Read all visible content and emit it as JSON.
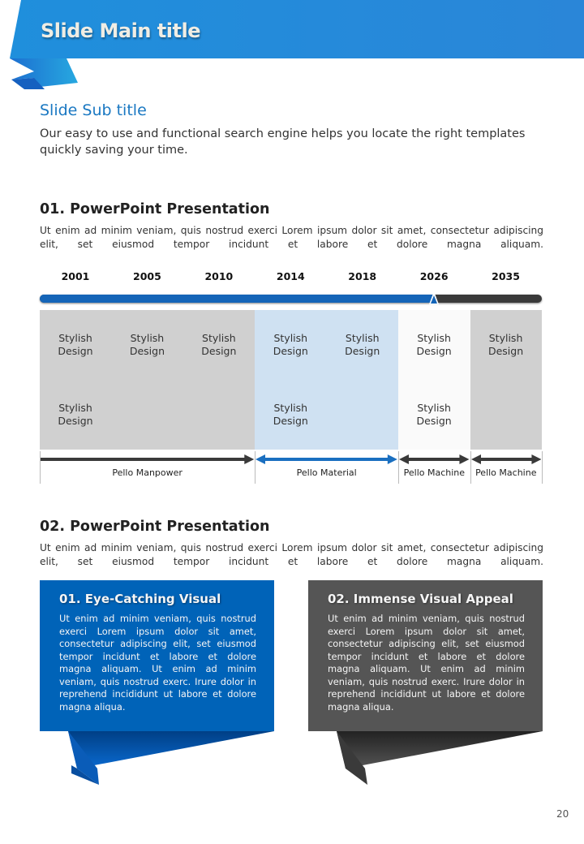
{
  "header": {
    "title": "Slide Main title",
    "subtitle": "Slide Sub title",
    "intro": "Our easy to use and functional search engine helps you locate the right templates quickly saving your time."
  },
  "section1": {
    "heading": "01. PowerPoint Presentation",
    "text": "Ut enim ad minim veniam, quis nostrud exerci  Lorem ipsum dolor sit amet, consectetur adipiscing elit, set eiusmod tempor incidunt et labore et dolore magna aliquam."
  },
  "timeline": {
    "years": [
      "2001",
      "2005",
      "2010",
      "2014",
      "2018",
      "2026",
      "2035"
    ],
    "current_year": "2026",
    "cells_row1": [
      "Stylish Design",
      "Stylish Design",
      "Stylish Design",
      "Stylish Design",
      "Stylish Design",
      "Stylish Design",
      "Stylish Design"
    ],
    "cells_row2": [
      "Stylish Design",
      "",
      "",
      "Stylish Design",
      "",
      "Stylish Design",
      ""
    ],
    "phases": [
      {
        "label": "Pello Manpower",
        "color": "#3a3a3a"
      },
      {
        "label": "Pello Material",
        "color": "#1a6fc0"
      },
      {
        "label": "Pello Machine",
        "color": "#3a3a3a"
      },
      {
        "label": "Pello Machine",
        "color": "#3a3a3a"
      }
    ],
    "colors": {
      "track": "#3a3a3a",
      "fill": "#1565b8",
      "gray": "#d0d0d0",
      "blue": "#cfe1f2",
      "white": "#fafafa"
    }
  },
  "section2": {
    "heading": "02. PowerPoint Presentation",
    "text": "Ut enim ad minim veniam, quis nostrud exerci  Lorem ipsum dolor sit amet, consectetur adipiscing elit, set eiusmod tempor incidunt et labore et dolore magna aliquam."
  },
  "boxes": [
    {
      "title": "01. Eye-Catching Visual",
      "text": "Ut enim ad minim veniam, quis nostrud exerci  Lorem ipsum dolor sit amet, consectetur adipiscing elit, set eiusmod tempor incidunt et labore et dolore magna aliquam. Ut enim ad minim veniam, quis nostrud exerc. Irure dolor in reprehend incididunt ut labore et dolore magna aliqua.",
      "color": "#0063b8"
    },
    {
      "title": "02. Immense Visual Appeal",
      "text": "Ut enim ad minim veniam, quis nostrud exerci  Lorem ipsum dolor sit amet, consectetur adipiscing elit, set eiusmod tempor incidunt et labore et dolore magna aliquam. Ut enim ad minim veniam, quis nostrud exerc. Irure dolor in reprehend incididunt ut labore et dolore magna aliqua.",
      "color": "#555555"
    }
  ],
  "page_number": "20"
}
